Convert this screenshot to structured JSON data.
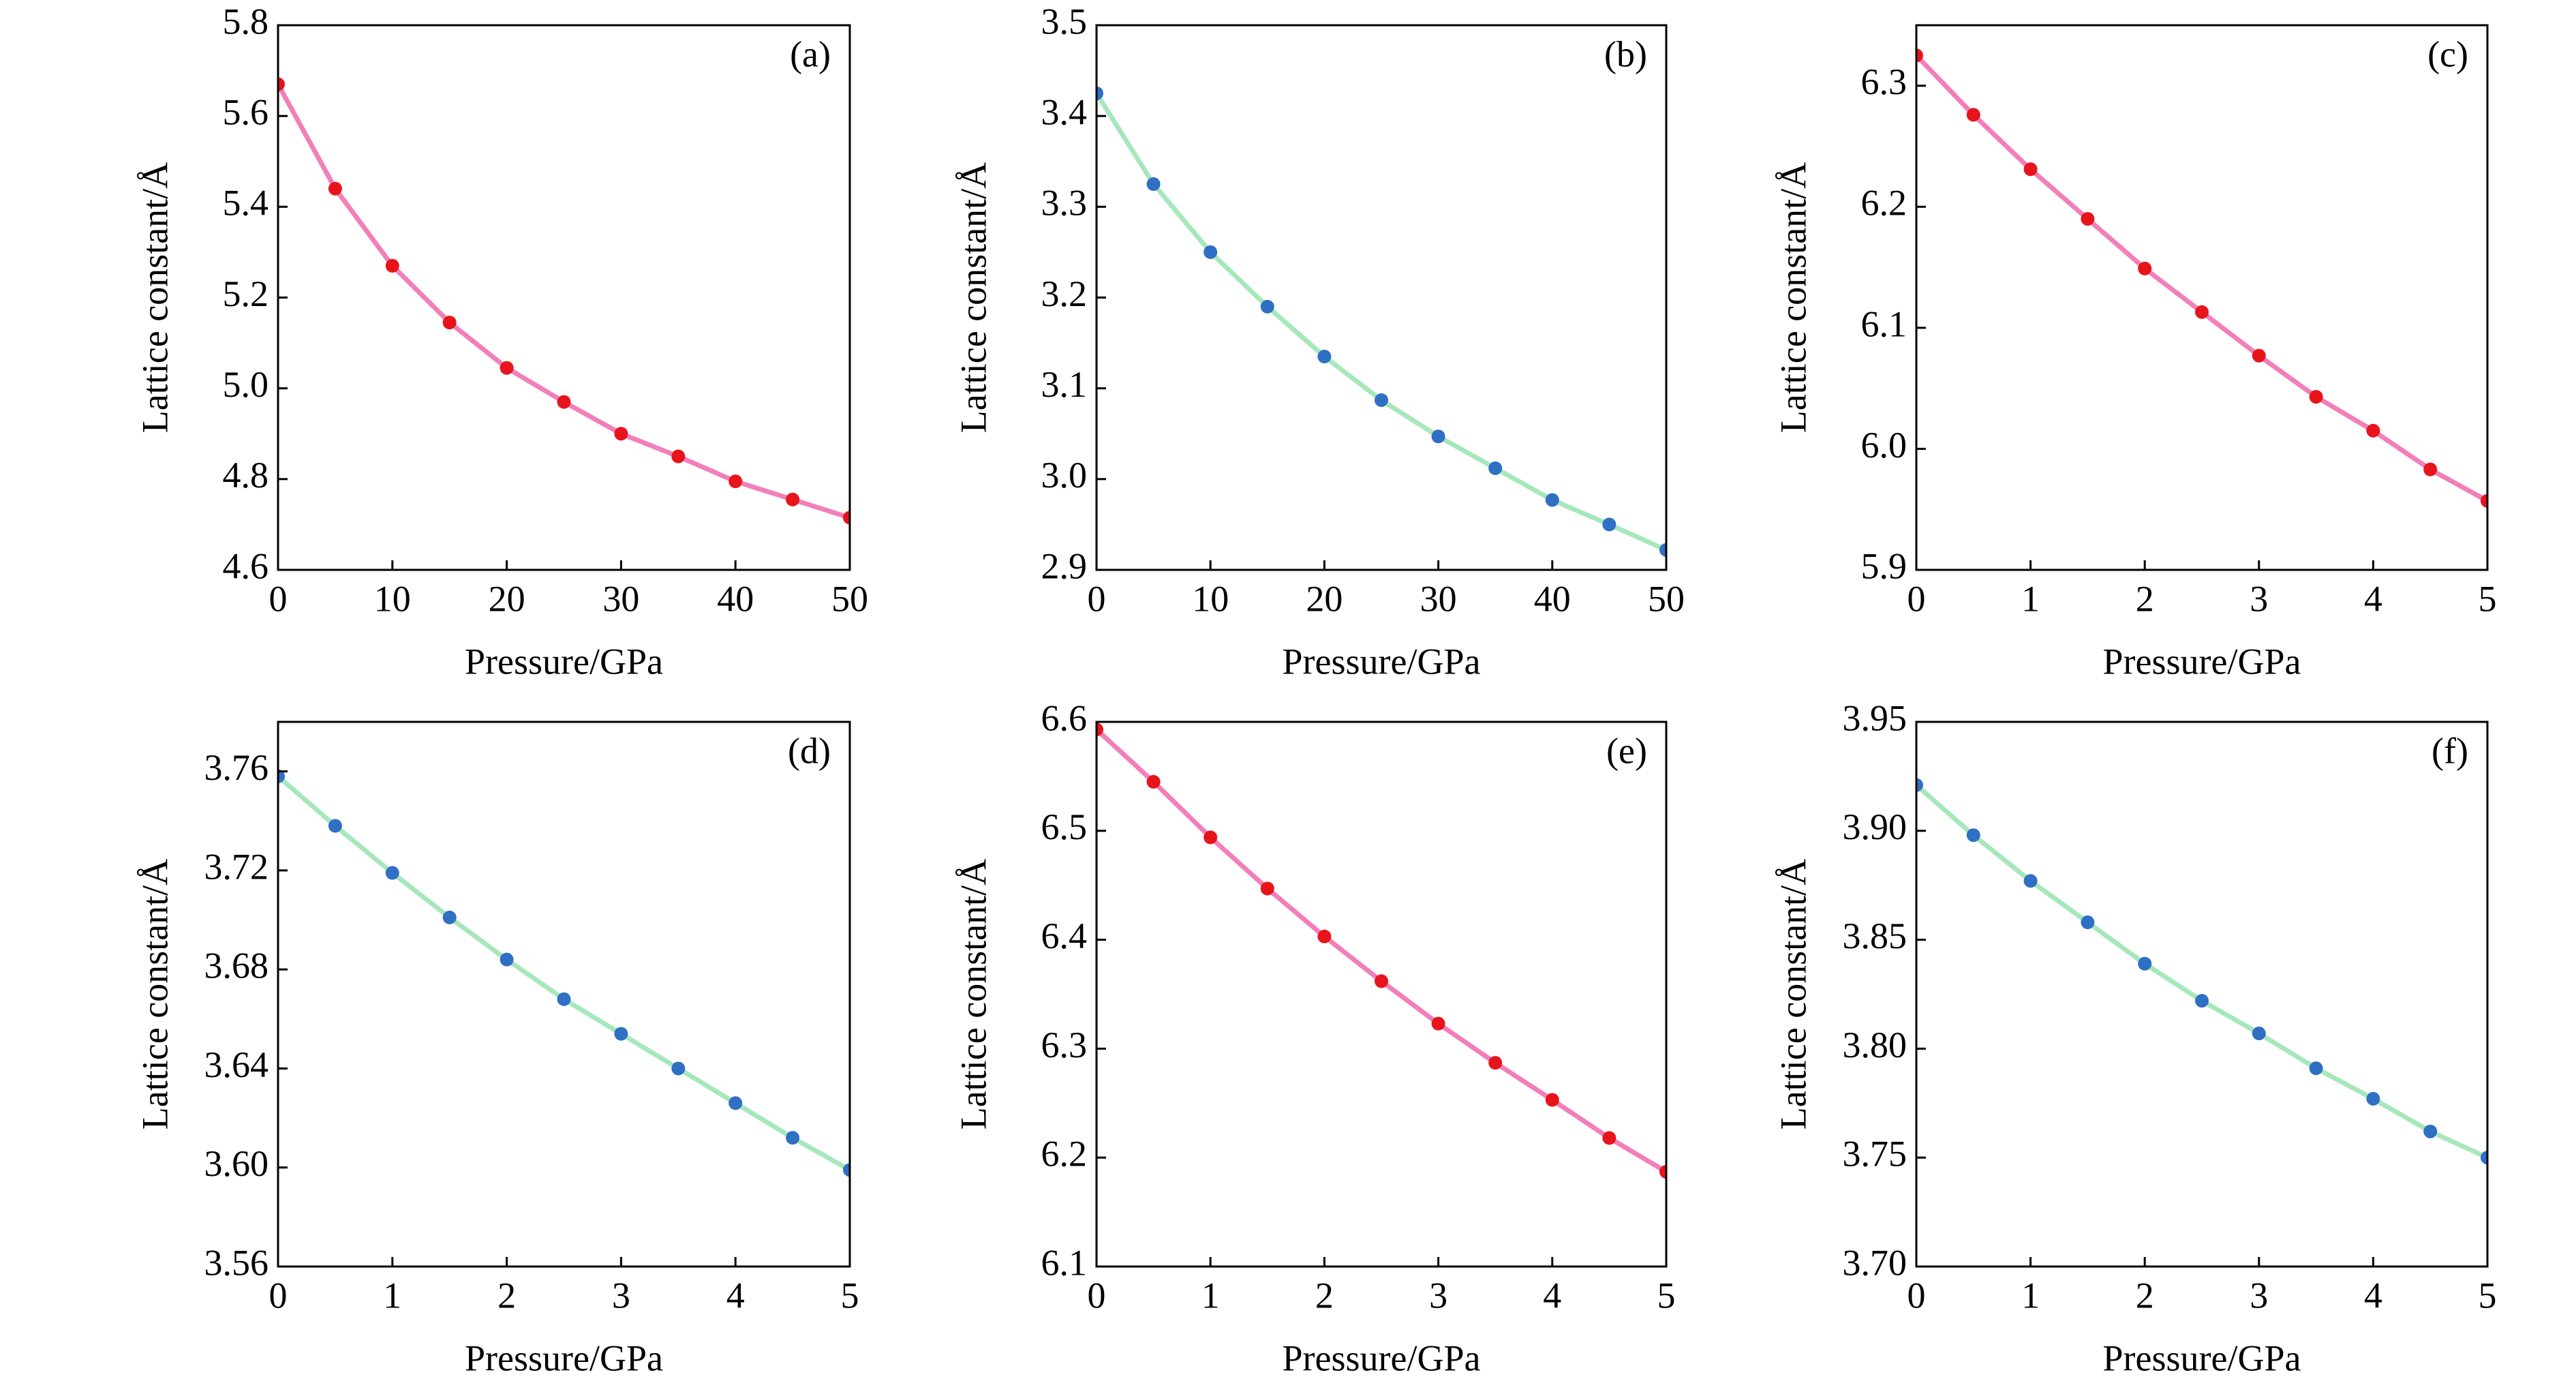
{
  "chart_data": [
    {
      "type": "line",
      "panel_label": "(a)",
      "xlabel": "Pressure/GPa",
      "ylabel": "Lattice constant/Å",
      "x": [
        0,
        5,
        10,
        15,
        20,
        25,
        30,
        35,
        40,
        45,
        50
      ],
      "series": [
        {
          "color": "#f27fb9",
          "marker_color": "#e8141c",
          "values": [
            5.67,
            5.44,
            5.27,
            5.145,
            5.045,
            4.97,
            4.9,
            4.85,
            4.795,
            4.755,
            4.715
          ]
        }
      ],
      "xlim": [
        0,
        50
      ],
      "xticks": [
        0,
        10,
        20,
        30,
        40,
        50
      ],
      "ylim": [
        4.6,
        5.8
      ],
      "yticks": [
        4.6,
        4.8,
        {
          "value": 5,
          "label": "5.0"
        },
        5.2,
        5.4,
        5.6,
        5.8
      ]
    },
    {
      "type": "line",
      "panel_label": "(b)",
      "xlabel": "Pressure/GPa",
      "ylabel": "Lattice constant/Å",
      "x": [
        0,
        5,
        10,
        15,
        20,
        25,
        30,
        35,
        40,
        45,
        50
      ],
      "series": [
        {
          "color": "#a6e8bb",
          "marker_color": "#2f6fc4",
          "values": [
            3.425,
            3.325,
            3.25,
            3.19,
            3.135,
            3.087,
            3.047,
            3.012,
            2.977,
            2.95,
            2.922
          ]
        }
      ],
      "xlim": [
        0,
        50
      ],
      "xticks": [
        0,
        10,
        20,
        30,
        40,
        50
      ],
      "ylim": [
        2.9,
        3.5
      ],
      "yticks": [
        2.9,
        {
          "value": 3,
          "label": "3.0"
        },
        3.1,
        3.2,
        3.3,
        3.4,
        3.5
      ]
    },
    {
      "type": "line",
      "panel_label": "(c)",
      "xlabel": "Pressure/GPa",
      "ylabel": "Lattice constant/Å",
      "x": [
        0,
        0.5,
        1,
        1.5,
        2,
        2.5,
        3,
        3.5,
        4,
        4.5,
        5
      ],
      "series": [
        {
          "color": "#f27fb9",
          "marker_color": "#e8141c",
          "values": [
            6.325,
            6.276,
            6.231,
            6.19,
            6.149,
            6.113,
            6.077,
            6.043,
            6.015,
            5.983,
            5.957
          ]
        }
      ],
      "xlim": [
        0,
        5
      ],
      "xticks": [
        0,
        1,
        2,
        3,
        4,
        5
      ],
      "ylim": [
        5.9,
        6.35
      ],
      "yticks": [
        5.9,
        {
          "value": 6,
          "label": "6.0"
        },
        6.1,
        6.2,
        6.3
      ]
    },
    {
      "type": "line",
      "panel_label": "(d)",
      "xlabel": "Pressure/GPa",
      "ylabel": "Lattice constant/Å",
      "x": [
        0,
        0.5,
        1,
        1.5,
        2,
        2.5,
        3,
        3.5,
        4,
        4.5,
        5
      ],
      "series": [
        {
          "color": "#a6e8bb",
          "marker_color": "#2f6fc4",
          "values": [
            3.758,
            3.738,
            3.719,
            3.701,
            3.684,
            3.668,
            3.654,
            3.64,
            3.626,
            3.612,
            3.599
          ]
        }
      ],
      "xlim": [
        0,
        5
      ],
      "xticks": [
        0,
        1,
        2,
        3,
        4,
        5
      ],
      "ylim": [
        3.56,
        3.78
      ],
      "yticks": [
        3.56,
        {
          "value": 3.6,
          "label": "3.60"
        },
        3.64,
        3.68,
        3.72,
        3.76
      ]
    },
    {
      "type": "line",
      "panel_label": "(e)",
      "xlabel": "Pressure/GPa",
      "ylabel": "Lattice constant/Å",
      "x": [
        0,
        0.5,
        1,
        1.5,
        2,
        2.5,
        3,
        3.5,
        4,
        4.5,
        5
      ],
      "series": [
        {
          "color": "#f27fb9",
          "marker_color": "#e8141c",
          "values": [
            6.593,
            6.545,
            6.494,
            6.447,
            6.403,
            6.362,
            6.323,
            6.287,
            6.253,
            6.218,
            6.187
          ]
        }
      ],
      "xlim": [
        0,
        5
      ],
      "xticks": [
        0,
        1,
        2,
        3,
        4,
        5
      ],
      "ylim": [
        6.1,
        6.6
      ],
      "yticks": [
        6.1,
        6.2,
        6.3,
        6.4,
        6.5,
        6.6
      ]
    },
    {
      "type": "line",
      "panel_label": "(f)",
      "xlabel": "Pressure/GPa",
      "ylabel": "Lattice constant/Å",
      "x": [
        0,
        0.5,
        1,
        1.5,
        2,
        2.5,
        3,
        3.5,
        4,
        4.5,
        5
      ],
      "series": [
        {
          "color": "#a6e8bb",
          "marker_color": "#2f6fc4",
          "values": [
            3.921,
            3.898,
            3.877,
            3.858,
            3.839,
            3.822,
            3.807,
            3.791,
            3.777,
            3.762,
            3.75
          ]
        }
      ],
      "xlim": [
        0,
        5
      ],
      "xticks": [
        0,
        1,
        2,
        3,
        4,
        5
      ],
      "ylim": [
        3.7,
        3.95
      ],
      "yticks": [
        {
          "value": 3.7,
          "label": "3.70"
        },
        3.75,
        {
          "value": 3.8,
          "label": "3.80"
        },
        3.85,
        {
          "value": 3.9,
          "label": "3.90"
        },
        3.95
      ]
    }
  ]
}
